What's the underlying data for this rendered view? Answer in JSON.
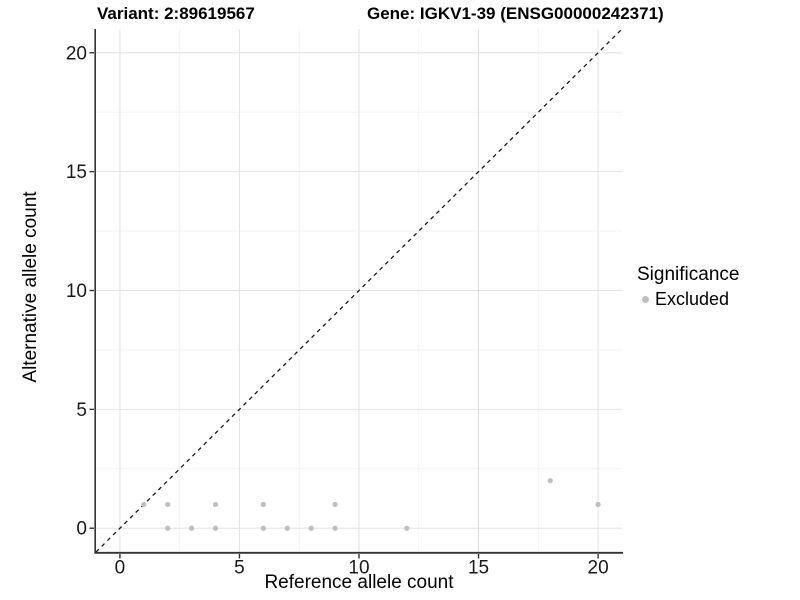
{
  "header": {
    "variant_title": "Variant: 2:89619567",
    "gene_title": "Gene: IGKV1-39 (ENSG00000242371)"
  },
  "axes": {
    "x_label": "Reference allele count",
    "y_label": "Alternative allele count"
  },
  "legend": {
    "title": "Significance",
    "items": [
      {
        "label": "Excluded",
        "color": "#bebebe"
      }
    ]
  },
  "colors": {
    "point": "#bebebe",
    "grid_major": "#e4e4e4",
    "grid_minor": "#f2f2f2",
    "axis_line": "#333333",
    "tick_mark": "#333333",
    "tick_label": "#1a1a1a",
    "reference_line": "#1a1a1a",
    "panel_background": "#ffffff"
  },
  "chart_data": {
    "type": "scatter",
    "title": "Variant: 2:89619567 — Gene: IGKV1-39 (ENSG00000242371)",
    "xlabel": "Reference allele count",
    "ylabel": "Alternative allele count",
    "xlim": [
      -1,
      21
    ],
    "ylim": [
      -1,
      21
    ],
    "x_ticks": [
      0,
      5,
      10,
      15,
      20
    ],
    "y_ticks": [
      0,
      5,
      10,
      15,
      20
    ],
    "grid": "major+minor",
    "minor_grid_midpoint_offset": 2.5,
    "legend_position": "right",
    "series": [
      {
        "name": "Excluded",
        "color": "#bebebe",
        "marker": "circle",
        "marker_radius": 2.6,
        "points": [
          [
            1,
            1
          ],
          [
            2,
            0
          ],
          [
            2,
            1
          ],
          [
            3,
            0
          ],
          [
            4,
            0
          ],
          [
            4,
            1
          ],
          [
            6,
            0
          ],
          [
            6,
            1
          ],
          [
            7,
            0
          ],
          [
            8,
            0
          ],
          [
            9,
            0
          ],
          [
            9,
            1
          ],
          [
            12,
            0
          ],
          [
            18,
            2
          ],
          [
            20,
            1
          ]
        ]
      }
    ],
    "reference_line": {
      "type": "identity",
      "style": "dashed",
      "color": "#1a1a1a"
    }
  }
}
